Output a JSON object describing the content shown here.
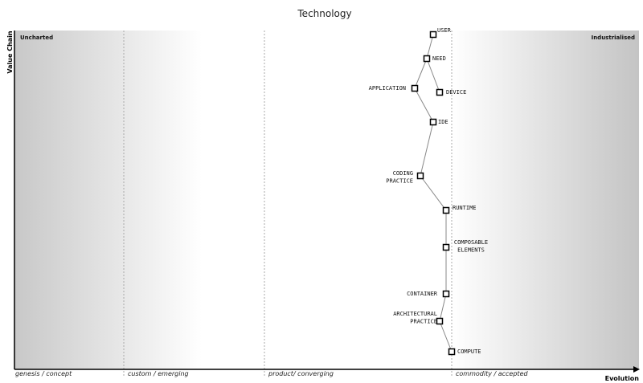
{
  "title": "Technology",
  "y_axis": "Value Chain",
  "x_axis": "Evolution",
  "regions": [
    "Uncharted",
    "Industrialised"
  ],
  "stages": [
    "genesis / concept",
    "custom / emerging",
    "product/ converging",
    "commodity / accepted"
  ],
  "nodes": [
    {
      "lines": [
        "USER"
      ]
    },
    {
      "lines": [
        "NEED"
      ]
    },
    {
      "lines": [
        "APPLICATION"
      ]
    },
    {
      "lines": [
        "DEVICE"
      ]
    },
    {
      "lines": [
        "IDE"
      ]
    },
    {
      "lines": [
        "CODING",
        "PRACTICE"
      ]
    },
    {
      "lines": [
        "RUNTIME"
      ]
    },
    {
      "lines": [
        "COMPOSABLE",
        "ELEMENTS"
      ]
    },
    {
      "lines": [
        "CONTAINER"
      ]
    },
    {
      "lines": [
        "ARCHITECTURAL",
        "PRACTICE"
      ]
    },
    {
      "lines": [
        "COMPUTE"
      ]
    }
  ]
}
